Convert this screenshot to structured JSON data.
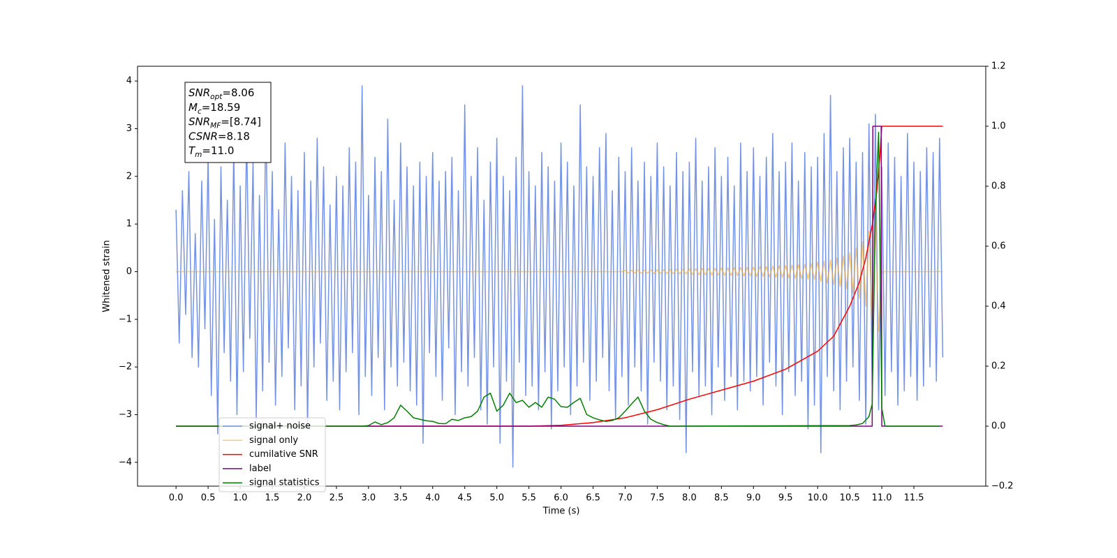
{
  "chart_data": {
    "type": "line",
    "x_label": "Time (s)",
    "y_label": "Whitened strain",
    "xlim": [
      -0.6,
      12.62
    ],
    "ylim": [
      -4.5,
      4.31
    ],
    "y2lim": [
      -0.2,
      1.2
    ],
    "xticks": [
      {
        "value": 0,
        "label": "0.0"
      },
      {
        "value": 0.5,
        "label": "0.5"
      },
      {
        "value": 1,
        "label": "1.0"
      },
      {
        "value": 1.5,
        "label": "1.5"
      },
      {
        "value": 2,
        "label": "2.0"
      },
      {
        "value": 2.5,
        "label": "2.5"
      },
      {
        "value": 3,
        "label": "3.0"
      },
      {
        "value": 3.5,
        "label": "3.5"
      },
      {
        "value": 4,
        "label": "4.0"
      },
      {
        "value": 4.5,
        "label": "4.5"
      },
      {
        "value": 5,
        "label": "5.0"
      },
      {
        "value": 5.5,
        "label": "5.5"
      },
      {
        "value": 6,
        "label": "6.0"
      },
      {
        "value": 6.5,
        "label": "6.5"
      },
      {
        "value": 7,
        "label": "7.0"
      },
      {
        "value": 7.5,
        "label": "7.5"
      },
      {
        "value": 8,
        "label": "8.0"
      },
      {
        "value": 8.5,
        "label": "8.5"
      },
      {
        "value": 9,
        "label": "9.0"
      },
      {
        "value": 9.5,
        "label": "9.5"
      },
      {
        "value": 10,
        "label": "10.0"
      },
      {
        "value": 10.5,
        "label": "10.5"
      },
      {
        "value": 11,
        "label": "11.0"
      },
      {
        "value": 11.5,
        "label": "11.5"
      }
    ],
    "yticks": [
      {
        "value": -4,
        "label": "−4"
      },
      {
        "value": -3,
        "label": "−3"
      },
      {
        "value": -2,
        "label": "−2"
      },
      {
        "value": -1,
        "label": "−1"
      },
      0,
      1,
      2,
      3,
      4
    ],
    "y2ticks": [
      {
        "value": -0.2,
        "label": "−0.2"
      },
      {
        "value": 0,
        "label": "0.0"
      },
      {
        "value": 0.2,
        "label": "0.2"
      },
      {
        "value": 0.4,
        "label": "0.4"
      },
      {
        "value": 0.6,
        "label": "0.6"
      },
      {
        "value": 0.8,
        "label": "0.8"
      },
      {
        "value": 1,
        "label": "1.0"
      },
      {
        "value": 1.2,
        "label": "1.2"
      }
    ],
    "legend": "lower left",
    "annotations": [
      {
        "symbol": "SNR",
        "subscript": "opt",
        "text": "=8.06"
      },
      {
        "symbol": "M",
        "subscript": "c",
        "text": "=18.59"
      },
      {
        "symbol": "SNR",
        "subscript": "MF",
        "text": "=[8.74]"
      },
      {
        "symbol": "CSNR",
        "text": "=8.18"
      },
      {
        "symbol": "T",
        "subscript": "m",
        "text": "=11.0"
      }
    ],
    "series": [
      {
        "name": "signal+ noise",
        "color": "#7593e6",
        "x": [
          0,
          0.05,
          0.1,
          0.15,
          0.2,
          0.25,
          0.3,
          0.35,
          0.4,
          0.45,
          0.5,
          0.55,
          0.6,
          0.65,
          0.7,
          0.75,
          0.8,
          0.85,
          0.9,
          0.95,
          1,
          1.05,
          1.1,
          1.15,
          1.2,
          1.25,
          1.3,
          1.35,
          1.4,
          1.45,
          1.5,
          1.55,
          1.6,
          1.65,
          1.7,
          1.75,
          1.8,
          1.85,
          1.9,
          1.95,
          2,
          2.05,
          2.1,
          2.15,
          2.2,
          2.25,
          2.3,
          2.35,
          2.4,
          2.45,
          2.5,
          2.55,
          2.6,
          2.65,
          2.7,
          2.75,
          2.8,
          2.85,
          2.9,
          2.95,
          3,
          3.05,
          3.1,
          3.15,
          3.2,
          3.25,
          3.3,
          3.35,
          3.4,
          3.45,
          3.5,
          3.55,
          3.6,
          3.65,
          3.7,
          3.75,
          3.8,
          3.85,
          3.9,
          3.95,
          4,
          4.05,
          4.1,
          4.15,
          4.2,
          4.25,
          4.3,
          4.35,
          4.4,
          4.45,
          4.5,
          4.55,
          4.6,
          4.65,
          4.7,
          4.75,
          4.8,
          4.85,
          4.9,
          4.95,
          5,
          5.05,
          5.1,
          5.15,
          5.2,
          5.25,
          5.3,
          5.35,
          5.4,
          5.45,
          5.5,
          5.55,
          5.6,
          5.65,
          5.7,
          5.75,
          5.8,
          5.85,
          5.9,
          5.95,
          6,
          6.05,
          6.1,
          6.15,
          6.2,
          6.25,
          6.3,
          6.35,
          6.4,
          6.45,
          6.5,
          6.55,
          6.6,
          6.65,
          6.7,
          6.75,
          6.8,
          6.85,
          6.9,
          6.95,
          7,
          7.05,
          7.1,
          7.15,
          7.2,
          7.25,
          7.3,
          7.35,
          7.4,
          7.45,
          7.5,
          7.55,
          7.6,
          7.65,
          7.7,
          7.75,
          7.8,
          7.85,
          7.9,
          7.95,
          8,
          8.05,
          8.1,
          8.15,
          8.2,
          8.25,
          8.3,
          8.35,
          8.4,
          8.45,
          8.5,
          8.55,
          8.6,
          8.65,
          8.7,
          8.75,
          8.8,
          8.85,
          8.9,
          8.95,
          9,
          9.05,
          9.1,
          9.15,
          9.2,
          9.25,
          9.3,
          9.35,
          9.4,
          9.45,
          9.5,
          9.55,
          9.6,
          9.65,
          9.7,
          9.75,
          9.8,
          9.85,
          9.9,
          9.95,
          10,
          10.05,
          10.1,
          10.15,
          10.2,
          10.25,
          10.3,
          10.35,
          10.4,
          10.45,
          10.5,
          10.55,
          10.6,
          10.65,
          10.7,
          10.75,
          10.8,
          10.85,
          10.9,
          10.95,
          11,
          11.05,
          11.1,
          11.15,
          11.2,
          11.25,
          11.3,
          11.35,
          11.4,
          11.45,
          11.5,
          11.55,
          11.6,
          11.65,
          11.7,
          11.75,
          11.8,
          11.85,
          11.9,
          11.95
        ],
        "values": [
          1.3,
          -1.5,
          1.7,
          -0.9,
          2.1,
          -1.8,
          0.8,
          -2.0,
          1.9,
          -1.2,
          2.4,
          -2.6,
          1.1,
          -3.4,
          2.2,
          -1.7,
          1.5,
          -2.3,
          2.6,
          -3.0,
          1.8,
          -2.1,
          2.9,
          -1.4,
          2.3,
          -3.1,
          1.6,
          -2.5,
          3.4,
          -1.9,
          2.1,
          -2.8,
          1.3,
          -2.2,
          2.7,
          -1.6,
          2.0,
          -2.9,
          1.7,
          -2.4,
          2.5,
          -3.3,
          1.9,
          -2.0,
          2.8,
          -1.5,
          2.2,
          -2.7,
          1.4,
          -2.3,
          2.0,
          -2.9,
          1.8,
          -2.1,
          2.6,
          -1.7,
          2.3,
          -3.0,
          3.9,
          -2.2,
          1.6,
          -2.6,
          2.4,
          -1.8,
          2.1,
          -2.9,
          3.2,
          -2.0,
          1.5,
          -2.4,
          2.7,
          -1.9,
          2.2,
          -2.5,
          1.8,
          -2.8,
          2.3,
          -3.6,
          2.0,
          -1.7,
          2.5,
          -2.2,
          1.9,
          -2.7,
          2.1,
          -1.6,
          2.4,
          -3.0,
          1.7,
          -2.1,
          3.5,
          -2.4,
          2.0,
          -1.8,
          2.6,
          -2.9,
          1.5,
          -3.2,
          2.3,
          -2.0,
          2.8,
          -3.6,
          2.0,
          -2.3,
          1.7,
          -4.1,
          2.4,
          -1.9,
          3.9,
          -2.6,
          2.1,
          -2.4,
          1.8,
          -2.9,
          2.5,
          -2.1,
          2.2,
          -3.3,
          1.9,
          -2.5,
          2.7,
          -2.0,
          2.3,
          -3.0,
          1.8,
          -2.4,
          3.5,
          -1.9,
          2.2,
          -2.7,
          2.0,
          -2.3,
          2.6,
          -1.8,
          2.9,
          -2.5,
          1.7,
          -3.1,
          2.4,
          -2.2,
          2.1,
          -2.8,
          2.6,
          -2.0,
          1.9,
          -2.5,
          2.3,
          -3.2,
          2.0,
          -1.9,
          2.7,
          -2.3,
          2.2,
          -2.9,
          1.8,
          -2.4,
          2.5,
          -3.1,
          2.1,
          -3.8,
          2.3,
          -2.1,
          2.8,
          -2.6,
          1.9,
          -2.4,
          2.2,
          -3.0,
          2.6,
          -2.0,
          2.0,
          -2.7,
          2.4,
          -2.2,
          1.8,
          -2.9,
          2.7,
          -2.3,
          2.1,
          -2.5,
          2.6,
          -2.2,
          2.0,
          -2.8,
          2.4,
          -1.9,
          2.9,
          -2.4,
          2.1,
          -3.0,
          2.3,
          -2.1,
          2.7,
          -2.6,
          1.9,
          -2.3,
          2.5,
          -3.3,
          2.2,
          -2.8,
          2.4,
          -3.8,
          2.9,
          -2.2,
          3.7,
          -2.5,
          2.1,
          -2.9,
          2.6,
          -2.3,
          2.8,
          -2.0,
          2.3,
          -2.7,
          2.5,
          -3.2,
          3.1,
          -2.4,
          3.3,
          -2.9,
          2.2,
          -2.6,
          2.7,
          -2.1,
          2.4,
          -2.8,
          2.0,
          -2.5,
          2.9,
          -2.2,
          2.3,
          -2.7,
          2.1,
          -2.4,
          2.6,
          -2.0,
          2.5,
          -2.3,
          2.8,
          -1.8
        ]
      },
      {
        "name": "signal only",
        "color": "#f5a623",
        "alpha": 0.6,
        "x": [
          0,
          6.95,
          7,
          7.05,
          7.1,
          7.15,
          7.2,
          7.25,
          7.3,
          7.35,
          7.4,
          7.45,
          7.5,
          7.55,
          7.6,
          7.65,
          7.7,
          7.75,
          7.8,
          7.85,
          7.9,
          7.95,
          8,
          8.05,
          8.1,
          8.15,
          8.2,
          8.25,
          8.3,
          8.35,
          8.4,
          8.45,
          8.5,
          8.55,
          8.6,
          8.65,
          8.7,
          8.75,
          8.8,
          8.85,
          8.9,
          8.95,
          9,
          9.05,
          9.1,
          9.15,
          9.2,
          9.25,
          9.3,
          9.35,
          9.4,
          9.45,
          9.5,
          9.55,
          9.6,
          9.65,
          9.7,
          9.75,
          9.8,
          9.85,
          9.9,
          9.95,
          10,
          10.05,
          10.1,
          10.15,
          10.2,
          10.25,
          10.3,
          10.35,
          10.4,
          10.45,
          10.5,
          10.55,
          10.6,
          10.65,
          10.7,
          10.75,
          10.8,
          10.85,
          10.9,
          10.95,
          11,
          11.95
        ],
        "values": [
          0,
          0,
          0.03,
          -0.03,
          0.03,
          -0.03,
          0.035,
          -0.035,
          0.035,
          -0.035,
          0.04,
          -0.04,
          0.04,
          -0.04,
          0.045,
          -0.045,
          0.045,
          -0.045,
          0.05,
          -0.05,
          0.05,
          -0.05,
          0.06,
          -0.06,
          0.065,
          -0.065,
          0.07,
          -0.07,
          0.07,
          -0.07,
          0.075,
          -0.075,
          0.08,
          -0.08,
          0.08,
          -0.08,
          0.085,
          -0.085,
          0.09,
          -0.09,
          0.09,
          -0.09,
          0.1,
          -0.1,
          0.105,
          -0.105,
          0.11,
          -0.11,
          0.12,
          -0.12,
          0.125,
          -0.125,
          0.13,
          -0.13,
          0.14,
          -0.14,
          0.15,
          -0.15,
          0.16,
          -0.16,
          0.17,
          -0.17,
          0.2,
          -0.21,
          0.22,
          -0.24,
          0.25,
          -0.27,
          0.29,
          -0.31,
          0.33,
          -0.36,
          0.4,
          -0.45,
          0.5,
          -0.56,
          0.63,
          -0.72,
          0.85,
          -1.0,
          1.15,
          -1.25,
          0,
          0
        ]
      },
      {
        "name": "cumilative SNR",
        "color": "#ff0000",
        "axis": "y2",
        "x": [
          0,
          5.5,
          6,
          6.5,
          7,
          7.5,
          8,
          8.5,
          9,
          9.5,
          10,
          10.25,
          10.5,
          10.65,
          10.75,
          10.85,
          10.92,
          10.97,
          11,
          11.95
        ],
        "values": [
          0,
          0,
          0.003,
          0.012,
          0.028,
          0.055,
          0.09,
          0.12,
          0.15,
          0.19,
          0.25,
          0.3,
          0.4,
          0.48,
          0.56,
          0.67,
          0.78,
          0.9,
          1,
          1
        ]
      },
      {
        "name": "label",
        "color": "#800080",
        "axis": "y2",
        "x": [
          0,
          10.85,
          10.86,
          10.99,
          11,
          11.95
        ],
        "values": [
          0,
          0,
          1,
          1,
          0,
          0
        ]
      },
      {
        "name": "signal statistics",
        "color": "#008000",
        "axis": "y2",
        "x": [
          0,
          2.9,
          3,
          3.1,
          3.2,
          3.3,
          3.4,
          3.5,
          3.6,
          3.7,
          3.8,
          3.9,
          4,
          4.1,
          4.2,
          4.3,
          4.4,
          4.5,
          4.6,
          4.7,
          4.8,
          4.9,
          5,
          5.1,
          5.2,
          5.3,
          5.4,
          5.5,
          5.6,
          5.7,
          5.8,
          5.9,
          6,
          6.1,
          6.2,
          6.3,
          6.4,
          6.5,
          6.6,
          6.7,
          6.8,
          6.9,
          7,
          7.1,
          7.2,
          7.3,
          7.4,
          7.5,
          7.6,
          7.7,
          10.5,
          10.6,
          10.7,
          10.8,
          10.85,
          10.9,
          10.95,
          11,
          11.05,
          11.9
        ],
        "values": [
          0,
          0,
          0.002,
          0.014,
          0.005,
          0.012,
          0.028,
          0.07,
          0.05,
          0.028,
          0.023,
          0.018,
          0.016,
          0.009,
          0.008,
          0.023,
          0.019,
          0.028,
          0.032,
          0.05,
          0.097,
          0.11,
          0.05,
          0.07,
          0.11,
          0.079,
          0.086,
          0.063,
          0.079,
          0.063,
          0.097,
          0.09,
          0.065,
          0.063,
          0.079,
          0.093,
          0.039,
          0.028,
          0.021,
          0.016,
          0.019,
          0.028,
          0.05,
          0.074,
          0.097,
          0.05,
          0.023,
          0.012,
          0.005,
          0,
          0.002,
          0.004,
          0.009,
          0.032,
          0.074,
          0.72,
          0.98,
          0.06,
          0,
          0
        ]
      }
    ]
  }
}
